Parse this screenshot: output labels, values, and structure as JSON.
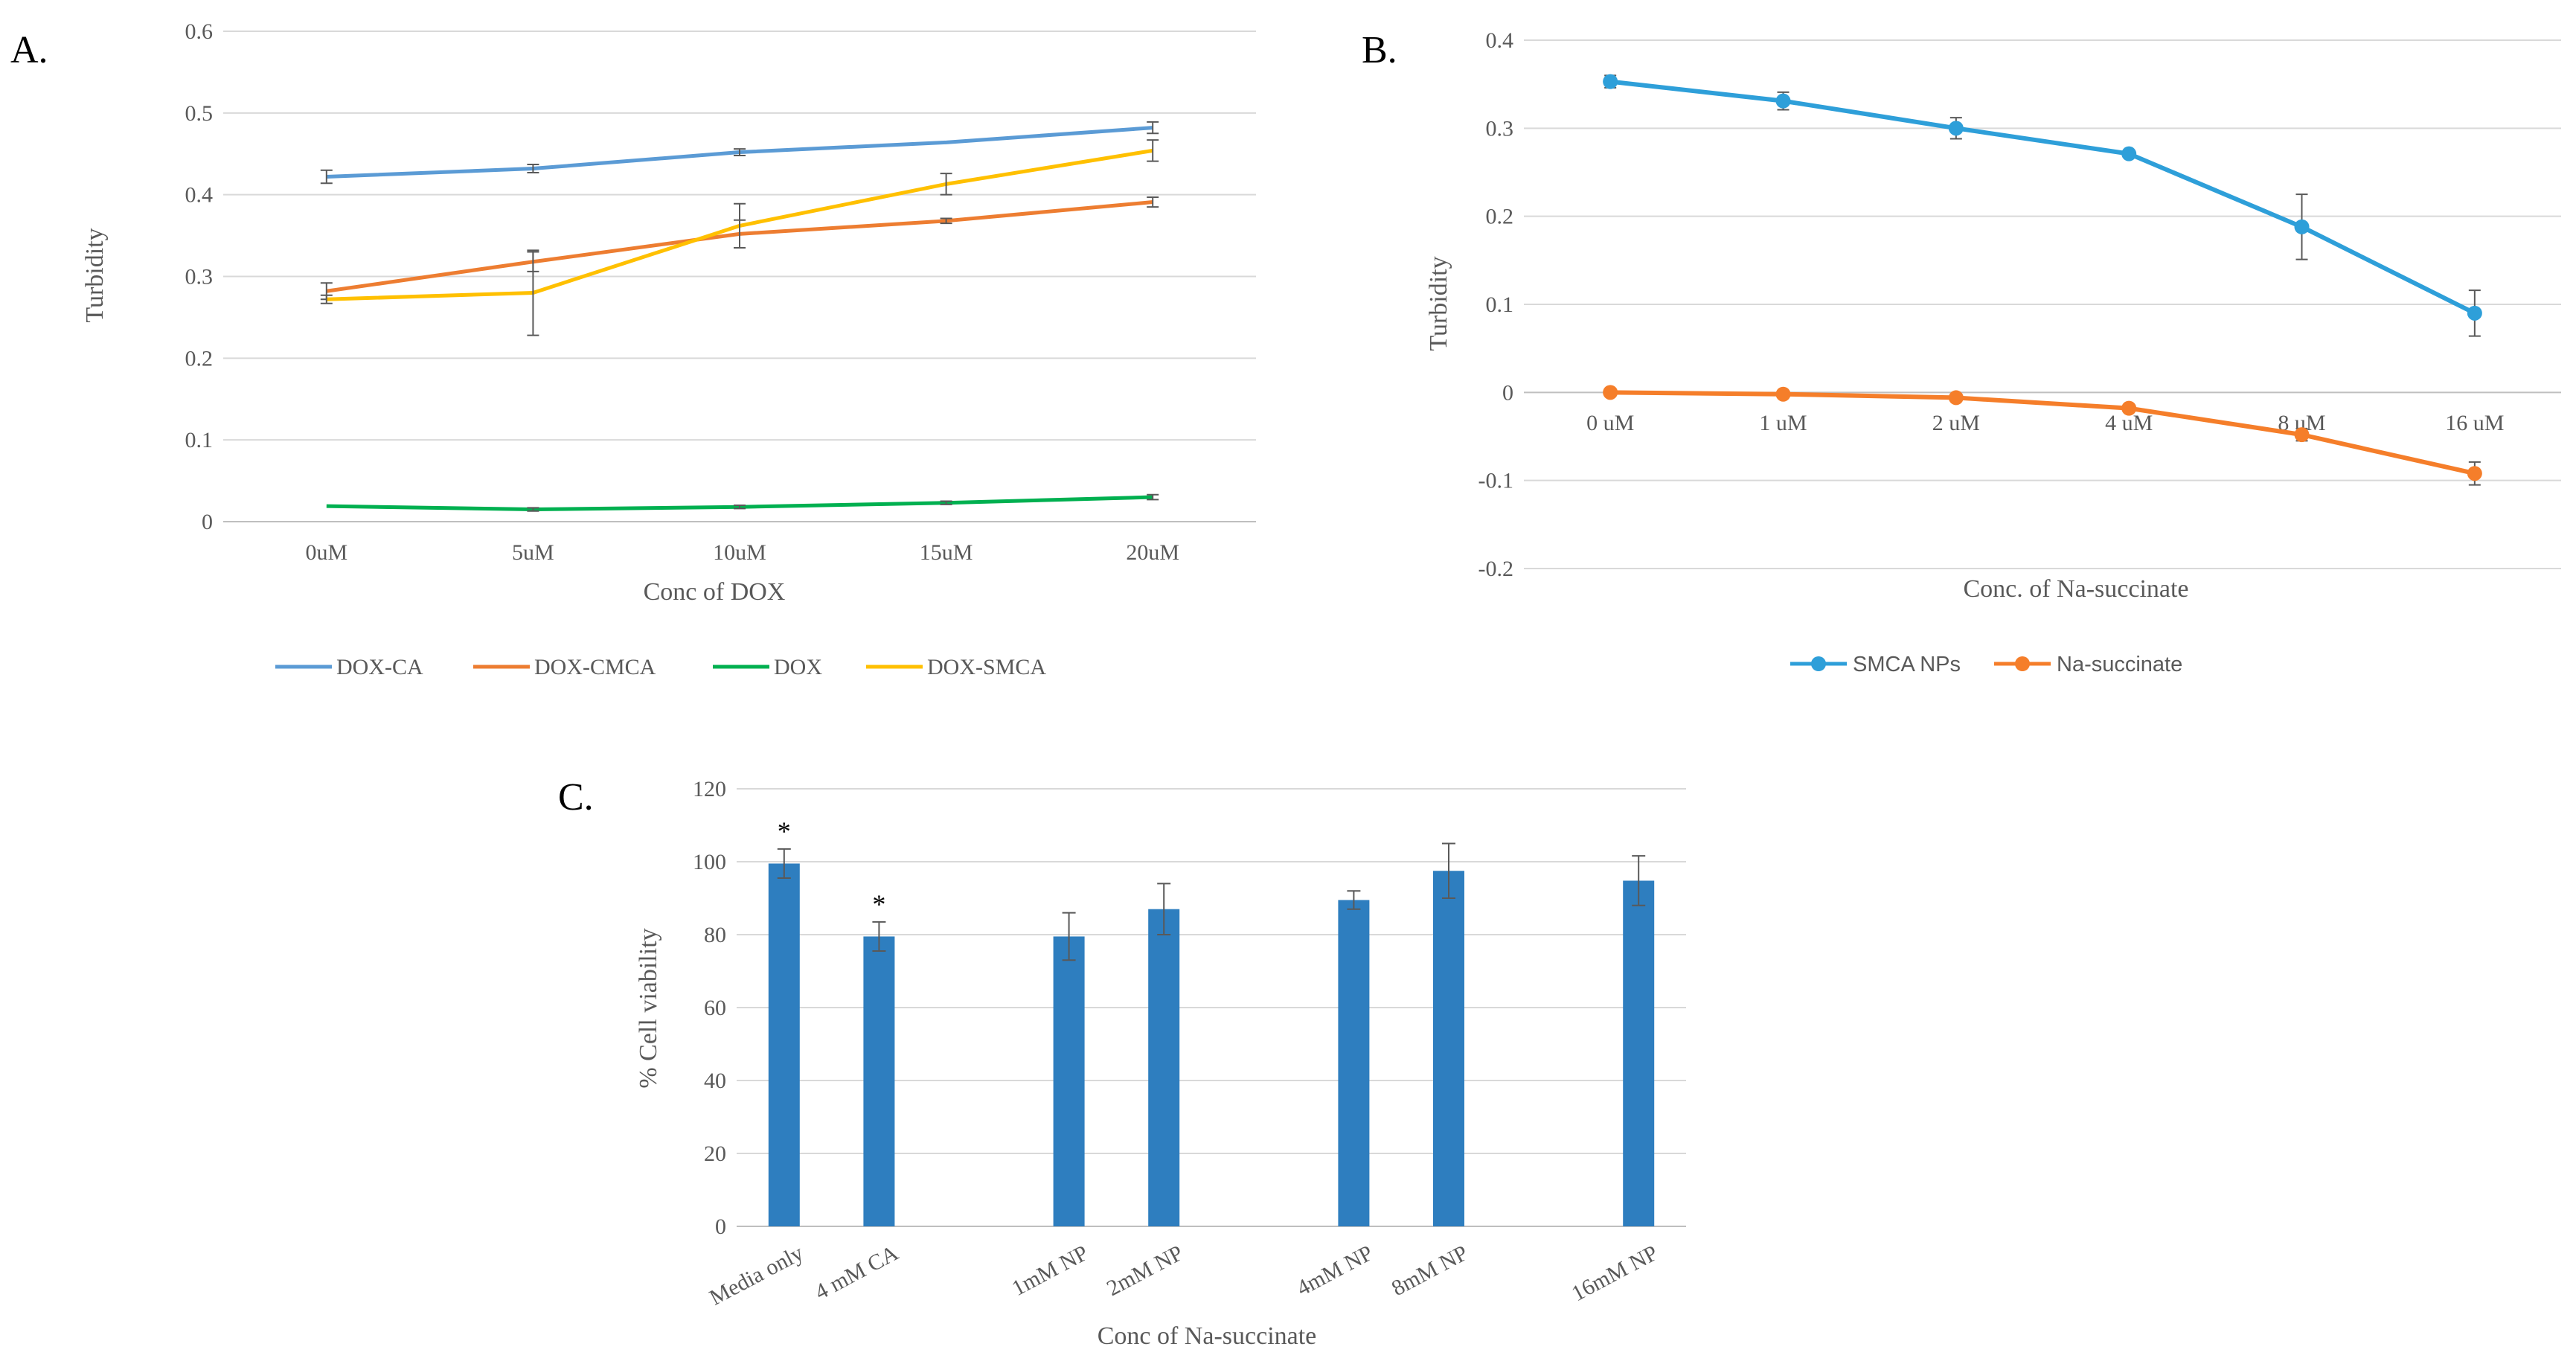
{
  "colors": {
    "blue": "#5b9bd5",
    "orange": "#ed7d31",
    "green": "#00b050",
    "yellow": "#ffc000",
    "cyan": "#2e9fd9",
    "orange2": "#f57e2a",
    "bar": "#2e7ebf"
  },
  "chart_data": [
    {
      "panel": "A.",
      "type": "line",
      "categories": [
        "0uM",
        "5uM",
        "10uM",
        "15uM",
        "20uM"
      ],
      "xlabel": "Conc of DOX",
      "ylabel": "Turbidity",
      "ylim": [
        0,
        0.6
      ],
      "yticks": [
        "0",
        "0.1",
        "0.2",
        "0.3",
        "0.4",
        "0.5",
        "0.6"
      ],
      "legend": "bottom",
      "series": [
        {
          "name": "DOX-CA",
          "color": "#5b9bd5",
          "values": [
            0.422,
            0.432,
            0.452,
            0.464,
            0.482
          ],
          "errors": [
            0.008,
            0.005,
            0.004,
            0,
            0.007
          ]
        },
        {
          "name": "DOX-CMCA",
          "color": "#ed7d31",
          "values": [
            0.282,
            0.318,
            0.352,
            0.368,
            0.391
          ],
          "errors": [
            0.01,
            0.012,
            0.017,
            0.003,
            0.006
          ]
        },
        {
          "name": "DOX",
          "color": "#00b050",
          "values": [
            0.019,
            0.015,
            0.018,
            0.023,
            0.03
          ],
          "errors": [
            0,
            0.002,
            0.002,
            0.002,
            0.003
          ]
        },
        {
          "name": "DOX-SMCA",
          "color": "#ffc000",
          "values": [
            0.272,
            0.28,
            0.362,
            0.413,
            0.454
          ],
          "errors": [
            0.005,
            0.052,
            0.027,
            0.013,
            0.013
          ]
        }
      ]
    },
    {
      "panel": "B.",
      "type": "line",
      "categories": [
        "0 uM",
        "1 uM",
        "2 uM",
        "4 uM",
        "8 uM",
        "16 uM"
      ],
      "xlabel": "Conc. of Na-succinate",
      "ylabel": "Turbidity",
      "ylim": [
        -0.2,
        0.4
      ],
      "yticks": [
        "-0.2",
        "-0.1",
        "0",
        "0.1",
        "0.2",
        "0.3",
        "0.4"
      ],
      "legend": "bottom",
      "series": [
        {
          "name": "SMCA NPs",
          "color": "#2e9fd9",
          "values": [
            0.353,
            0.331,
            0.3,
            0.271,
            0.188,
            0.09
          ],
          "errors": [
            0.007,
            0.01,
            0.012,
            0,
            0.037,
            0.026
          ]
        },
        {
          "name": "Na-succinate",
          "color": "#f57e2a",
          "values": [
            0,
            -0.002,
            -0.006,
            -0.018,
            -0.048,
            -0.092
          ],
          "errors": [
            0,
            0,
            0,
            0,
            0.007,
            0.013
          ]
        }
      ]
    },
    {
      "panel": "C.",
      "type": "bar",
      "categories": [
        "Media only",
        "4 mM CA",
        "1mM NP",
        "2mM NP",
        "4mM NP",
        "8mM NP",
        "16mM NP"
      ],
      "slots": [
        0,
        1,
        3,
        4,
        6,
        7,
        9
      ],
      "values": [
        99.5,
        79.5,
        79.5,
        87,
        89.5,
        97.5,
        94.8
      ],
      "errors": [
        4,
        4,
        6.5,
        7,
        2.5,
        7.5,
        6.8
      ],
      "significant": [
        "*",
        "*",
        "",
        "",
        "",
        "",
        ""
      ],
      "xlabel": "Conc of Na-succinate",
      "ylabel": "% Cell viability",
      "ylim": [
        0,
        120
      ],
      "yticks": [
        "0",
        "20",
        "40",
        "60",
        "80",
        "100",
        "120"
      ],
      "color": "#2e7ebf"
    }
  ]
}
